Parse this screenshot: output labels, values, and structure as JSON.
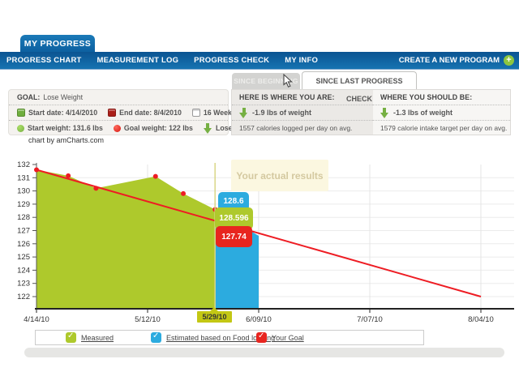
{
  "header": {
    "app_tab": "MY PROGRESS"
  },
  "nav": {
    "items": [
      {
        "label": "PROGRESS CHART"
      },
      {
        "label": "MEASUREMENT LOG"
      },
      {
        "label": "PROGRESS CHECK"
      },
      {
        "label": "MY INFO"
      }
    ],
    "create_label": "CREATE A NEW PROGRAM",
    "plus_icon": "+"
  },
  "tabs": [
    {
      "label": "SINCE BEGINNING"
    },
    {
      "label": "SINCE LAST PROGRESS CHECK"
    }
  ],
  "goal": {
    "label": "GOAL:",
    "value": "Lose Weight",
    "start_date": "Start date: 4/14/2010",
    "end_date": "End date: 8/4/2010",
    "duration": "16 Weeks",
    "start_weight": "Start weight: 131.6 lbs",
    "goal_weight": "Goal weight: 122 lbs",
    "lose": "Lose 9.6 lbs"
  },
  "status": {
    "here": {
      "title": "HERE IS WHERE YOU ARE:",
      "weight_change": "-1.9 lbs of weight",
      "calories": "1557 calories logged per day on avg."
    },
    "should": {
      "title": "WHERE YOU SHOULD BE:",
      "weight_change": "-1.3 lbs of weight",
      "calories": "1579 calorie intake target per day on avg."
    }
  },
  "chart": {
    "credit": "chart by amCharts.com",
    "tooltip": "Your actual results",
    "balloons": [
      {
        "series": "Estimated based on Food logging",
        "value": "128.6",
        "color": "#2cabdf"
      },
      {
        "series": "Measured",
        "value": "128.596",
        "color": "#aec92c"
      },
      {
        "series": "Your Goal",
        "value": "127.74",
        "color": "#e8251f"
      }
    ],
    "cursor_label": "5/29/10"
  },
  "chart_data": {
    "type": "area",
    "title": "Weight progress (lbs) vs date",
    "xlabel": "",
    "ylabel": "",
    "ylim": [
      122,
      132
    ],
    "grid": true,
    "y_ticks": [
      122,
      123,
      124,
      125,
      126,
      127,
      128,
      129,
      130,
      131,
      132
    ],
    "x_ticks": [
      {
        "day": 0,
        "label": "4/14/10"
      },
      {
        "day": 28,
        "label": "5/12/10"
      },
      {
        "day": 56,
        "label": "6/09/10"
      },
      {
        "day": 84,
        "label": "7/07/10"
      },
      {
        "day": 112,
        "label": "8/04/10"
      }
    ],
    "cursor": {
      "day": 45,
      "label": "5/29/10"
    },
    "series": [
      {
        "name": "Measured",
        "type": "area",
        "color": "#aec92c",
        "points": [
          {
            "day": 0,
            "value": 131.6
          },
          {
            "day": 8,
            "value": 131.15
          },
          {
            "day": 15,
            "value": 130.2
          },
          {
            "day": 30,
            "value": 131.1
          },
          {
            "day": 37,
            "value": 129.8
          },
          {
            "day": 45,
            "value": 128.596
          }
        ]
      },
      {
        "name": "Estimated based on Food logging",
        "type": "area",
        "color": "#2cabdf",
        "points": [
          {
            "day": 45,
            "value": 128.6
          },
          {
            "day": 56,
            "value": 126.6
          }
        ]
      },
      {
        "name": "Your Goal",
        "type": "line",
        "color": "#ee1c23",
        "points": [
          {
            "day": 0,
            "value": 131.6
          },
          {
            "day": 112,
            "value": 122
          }
        ]
      }
    ],
    "legend_position": "bottom"
  },
  "legend": {
    "items": [
      {
        "label": "Measured",
        "color": "#aec92c"
      },
      {
        "label": "Estimated based on Food logging",
        "color": "#2cabdf"
      },
      {
        "label": "Your Goal",
        "color": "#e8251f"
      }
    ]
  }
}
